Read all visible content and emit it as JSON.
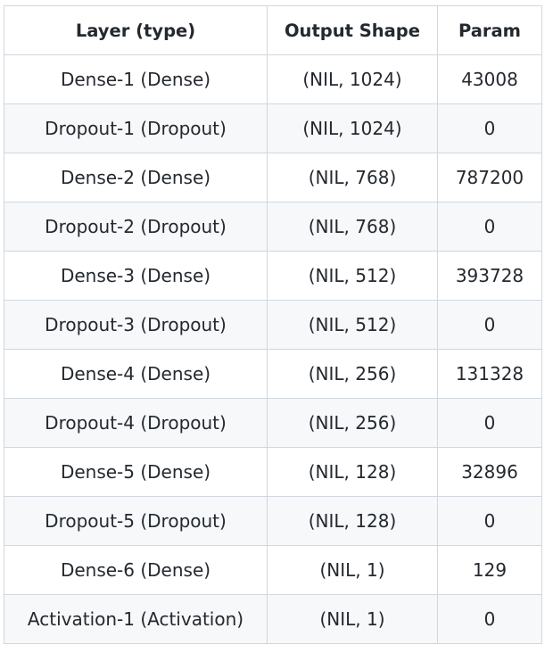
{
  "table": {
    "headers": [
      "Layer (type)",
      "Output Shape",
      "Param"
    ],
    "rows": [
      [
        "Dense-1 (Dense)",
        "(NIL, 1024)",
        "43008"
      ],
      [
        "Dropout-1 (Dropout)",
        "(NIL, 1024)",
        "0"
      ],
      [
        "Dense-2 (Dense)",
        "(NIL, 768)",
        "787200"
      ],
      [
        "Dropout-2 (Dropout)",
        "(NIL, 768)",
        "0"
      ],
      [
        "Dense-3 (Dense)",
        "(NIL, 512)",
        "393728"
      ],
      [
        "Dropout-3 (Dropout)",
        "(NIL, 512)",
        "0"
      ],
      [
        "Dense-4 (Dense)",
        "(NIL, 256)",
        "131328"
      ],
      [
        "Dropout-4 (Dropout)",
        "(NIL, 256)",
        "0"
      ],
      [
        "Dense-5 (Dense)",
        "(NIL, 128)",
        "32896"
      ],
      [
        "Dropout-5 (Dropout)",
        "(NIL, 128)",
        "0"
      ],
      [
        "Dense-6 (Dense)",
        "(NIL, 1)",
        "129"
      ],
      [
        "Activation-1 (Activation)",
        "(NIL, 1)",
        "0"
      ]
    ]
  }
}
